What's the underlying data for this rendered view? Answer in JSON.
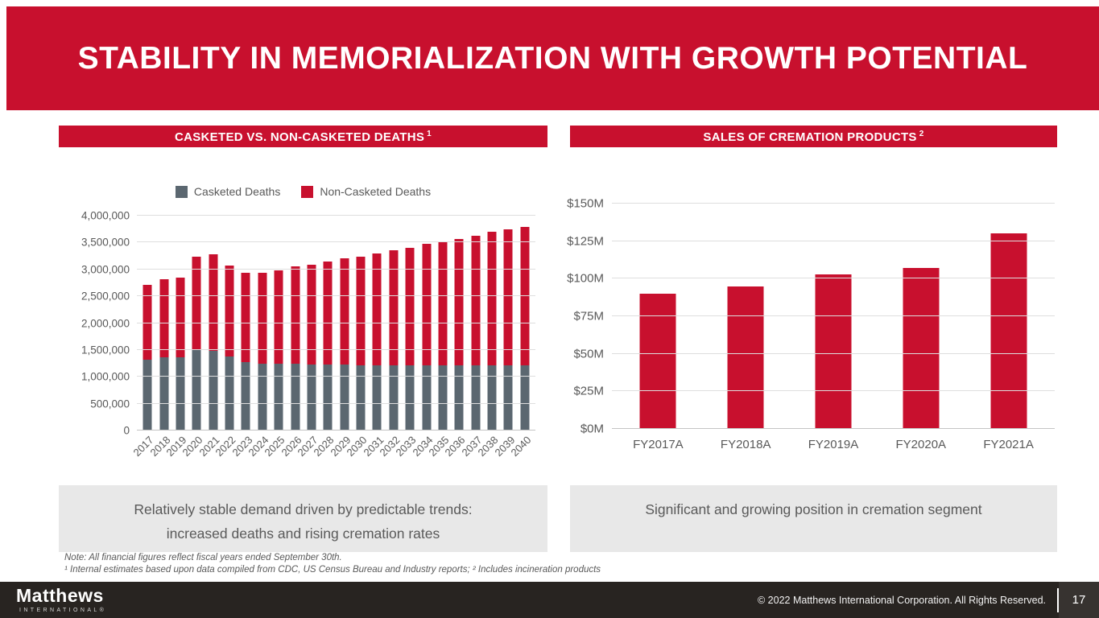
{
  "slide": {
    "title": "STABILITY IN MEMORIALIZATION WITH GROWTH POTENTIAL"
  },
  "left_panel": {
    "header": {
      "label": "CASKETED VS. NON-CASKETED DEATHS",
      "sup": "1"
    },
    "caption_line1": "Relatively stable demand driven by predictable trends:",
    "caption_line2": "increased deaths and rising cremation rates"
  },
  "right_panel": {
    "header": {
      "label": "SALES OF CREMATION PRODUCTS",
      "sup": "2"
    },
    "caption": "Significant and growing position in cremation segment"
  },
  "footnotes": {
    "line1": "Note:  All financial figures reflect fiscal years ended September 30th.",
    "line2": "¹ Internal estimates based upon data compiled from CDC, US Census Bureau and Industry reports; ² Includes incineration products"
  },
  "footer": {
    "logo_name": "Matthews",
    "logo_subtext": "INTERNATIONAL®",
    "copyright": "© 2022 Matthews International Corporation. All Rights Reserved.",
    "page_number": "17"
  },
  "colors": {
    "brand_red": "#C8102E",
    "slate_gray": "#5B6770",
    "footer_bg": "#282421",
    "caption_bg": "#E8E8E8",
    "text_gray": "#595959"
  },
  "chart_data": [
    {
      "type": "bar",
      "stacked": true,
      "title": "CASKETED VS. NON-CASKETED DEATHS ¹",
      "legend_position": "top",
      "grid": true,
      "ylim": [
        0,
        4000000
      ],
      "ytick_labels": [
        "0",
        "500,000",
        "1,000,000",
        "1,500,000",
        "2,000,000",
        "2,500,000",
        "3,000,000",
        "3,500,000",
        "4,000,000"
      ],
      "categories": [
        "2017",
        "2018",
        "2019",
        "2020",
        "2021",
        "2022",
        "2023",
        "2024",
        "2025",
        "2026",
        "2027",
        "2028",
        "2029",
        "2030",
        "2031",
        "2032",
        "2033",
        "2034",
        "2035",
        "2036",
        "2037",
        "2038",
        "2039",
        "2040"
      ],
      "series": [
        {
          "name": "Casketed Deaths",
          "color": "#5B6770",
          "values": [
            1320000,
            1370000,
            1360000,
            1520000,
            1480000,
            1380000,
            1270000,
            1240000,
            1250000,
            1240000,
            1230000,
            1230000,
            1230000,
            1220000,
            1220000,
            1220000,
            1220000,
            1220000,
            1220000,
            1220000,
            1220000,
            1220000,
            1220000,
            1220000
          ]
        },
        {
          "name": "Non-Casketed Deaths",
          "color": "#C8102E",
          "values": [
            1390000,
            1450000,
            1480000,
            1720000,
            1800000,
            1690000,
            1670000,
            1700000,
            1730000,
            1820000,
            1860000,
            1910000,
            1980000,
            2020000,
            2070000,
            2130000,
            2180000,
            2250000,
            2290000,
            2350000,
            2400000,
            2480000,
            2530000,
            2570000
          ]
        }
      ]
    },
    {
      "type": "bar",
      "stacked": false,
      "title": "SALES OF CREMATION PRODUCTS ²",
      "grid": true,
      "unit": "$M",
      "ylim": [
        0,
        150
      ],
      "ytick_labels": [
        "$0M",
        "$25M",
        "$50M",
        "$75M",
        "$100M",
        "$125M",
        "$150M"
      ],
      "categories": [
        "FY2017A",
        "FY2018A",
        "FY2019A",
        "FY2020A",
        "FY2021A"
      ],
      "color": "#C8102E",
      "values": [
        90,
        95,
        103,
        107,
        130
      ]
    }
  ]
}
